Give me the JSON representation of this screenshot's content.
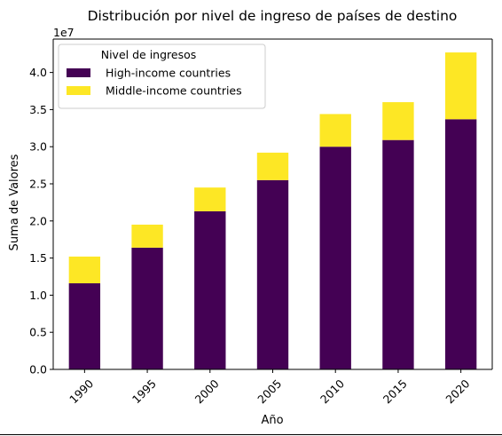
{
  "chart_data": {
    "type": "bar",
    "stacked": true,
    "title": "Distribución por nivel de ingreso de países de destino",
    "xlabel": "Año",
    "ylabel": "Suma de Valores",
    "y_offset_label": "1e7",
    "categories": [
      "1990",
      "1995",
      "2000",
      "2005",
      "2010",
      "2015",
      "2020"
    ],
    "series": [
      {
        "name": "High-income countries",
        "color": "#440154",
        "values": [
          11600000,
          16400000,
          21300000,
          25500000,
          30000000,
          30900000,
          33700000
        ]
      },
      {
        "name": "Middle-income countries",
        "color": "#fde725",
        "values": [
          3600000,
          3100000,
          3200000,
          3700000,
          4400000,
          5100000,
          9000000
        ]
      }
    ],
    "ylim": [
      0,
      44500000
    ],
    "yticks": [
      0,
      5000000,
      10000000,
      15000000,
      20000000,
      25000000,
      30000000,
      35000000,
      40000000
    ],
    "ytick_labels": [
      "0.0",
      "0.5",
      "1.0",
      "1.5",
      "2.0",
      "2.5",
      "3.0",
      "3.5",
      "4.0"
    ],
    "xtick_rotation": 45,
    "grid": false,
    "legend": {
      "title": "Nivel de ingresos",
      "position": "top-left"
    }
  }
}
